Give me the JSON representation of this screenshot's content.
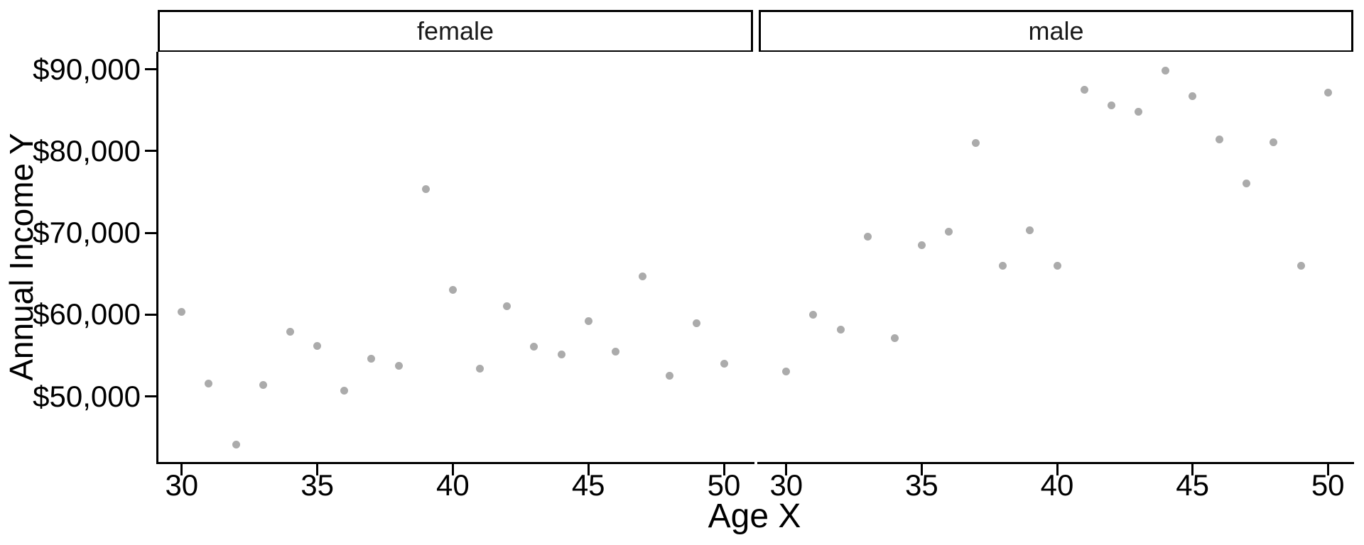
{
  "figure": {
    "facets": [
      {
        "label": "female"
      },
      {
        "label": "male"
      }
    ],
    "y_axis": {
      "title": "Annual Income Y",
      "ticks": [
        {
          "value": 90000,
          "label": "$90,000"
        },
        {
          "value": 80000,
          "label": "$80,000"
        },
        {
          "value": 70000,
          "label": "$70,000"
        },
        {
          "value": 60000,
          "label": "$60,000"
        },
        {
          "value": 50000,
          "label": "$50,000"
        }
      ]
    },
    "x_axis": {
      "title": "Age X",
      "ticks": [
        {
          "value": 30,
          "label": "30"
        },
        {
          "value": 35,
          "label": "35"
        },
        {
          "value": 40,
          "label": "40"
        },
        {
          "value": 45,
          "label": "45"
        },
        {
          "value": 50,
          "label": "50"
        }
      ]
    }
  },
  "colors": {
    "point": "#ababab",
    "axis": "#000000",
    "strip_border": "#000000",
    "strip_fill": "#ffffff",
    "background": "#ffffff"
  },
  "chart_data": {
    "type": "scatter",
    "title": "",
    "xlabel": "Age X",
    "ylabel": "Annual Income Y",
    "facet_variable_values": [
      "female",
      "male"
    ],
    "x": [
      30,
      31,
      32,
      33,
      34,
      35,
      36,
      37,
      38,
      39,
      40,
      41,
      42,
      43,
      44,
      45,
      46,
      47,
      48,
      49,
      50
    ],
    "series": [
      {
        "name": "female",
        "values": [
          60300,
          51600,
          44100,
          51400,
          57900,
          56200,
          50700,
          54600,
          53700,
          75300,
          63000,
          53400,
          61000,
          56100,
          55100,
          59200,
          55500,
          64700,
          52500,
          58900,
          54000
        ]
      },
      {
        "name": "male",
        "values": [
          53000,
          60000,
          58200,
          69500,
          57100,
          68500,
          70100,
          81000,
          66000,
          70300,
          66000,
          87500,
          85600,
          84800,
          89800,
          86700,
          81400,
          76000,
          81100,
          66000,
          87100
        ]
      }
    ],
    "xlim": [
      28.9,
      51.1
    ],
    "ylim": [
      41900,
      92500
    ],
    "grid": false,
    "legend": "none",
    "point_color": "#ababab"
  }
}
